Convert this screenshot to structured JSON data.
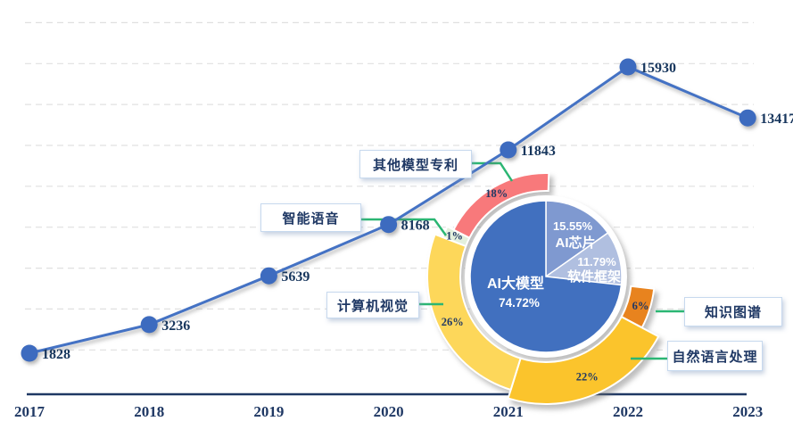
{
  "chart_data": [
    {
      "type": "line",
      "categories": [
        "2017",
        "2018",
        "2019",
        "2020",
        "2021",
        "2022",
        "2023"
      ],
      "values": [
        1828,
        3236,
        5639,
        8168,
        11843,
        15930,
        13417
      ],
      "ylim": [
        0,
        18000
      ],
      "grid": "horizontal-dashed",
      "legend": "none",
      "line_color": "#4472C4",
      "point_color": "#3D6BBF",
      "label_color": "#17365D",
      "axis_color": "#1F3864"
    },
    {
      "type": "pie",
      "inner_series": [
        {
          "label": "AI大模型",
          "value": 74.72,
          "color": "#4170BF"
        },
        {
          "label": "AI芯片",
          "value": 15.55,
          "color": "#7F99D0"
        },
        {
          "label": "软件框架",
          "value": 11.79,
          "color": "#B0BFE0"
        }
      ],
      "outer_series": [
        {
          "label": "知识图谱",
          "value": 6,
          "color": "#E8831E"
        },
        {
          "label": "自然语言处理",
          "value": 22,
          "color": "#FBC42C"
        },
        {
          "label": "计算机视觉",
          "value": 26,
          "color": "#FDD75A"
        },
        {
          "label": "智能语音",
          "value": 1,
          "color": "#E3F0DC"
        },
        {
          "label": "其他模型专利",
          "value": 18,
          "color": "#F8797B"
        }
      ],
      "inner_text_color": "#FFFFFF",
      "ring_label_color": "#1F3864",
      "connector_color": "#2BB673"
    }
  ]
}
